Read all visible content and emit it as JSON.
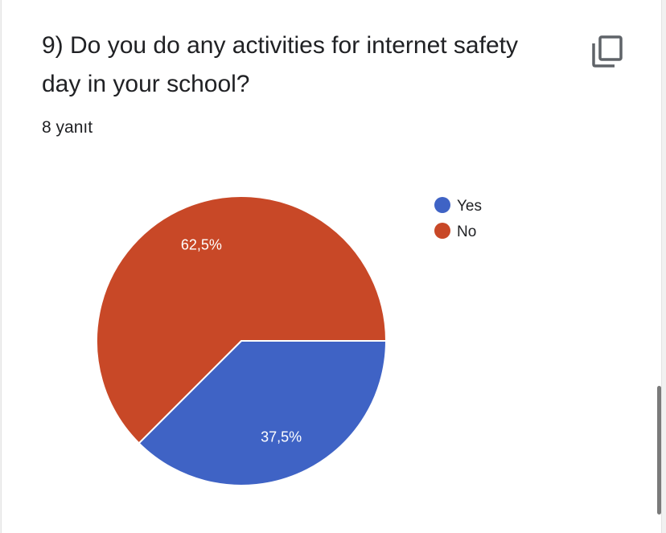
{
  "question": {
    "title": "9) Do you do any activities for internet safety day in your school?",
    "response_count": "8 yanıt"
  },
  "icons": {
    "copy": "copy-icon"
  },
  "colors": {
    "yes": "#3f63c5",
    "no": "#c84827"
  },
  "chart_data": {
    "type": "pie",
    "title": "9) Do you do any activities for internet safety day in your school?",
    "categories": [
      "Yes",
      "No"
    ],
    "values": [
      37.5,
      62.5
    ],
    "labels": [
      "37,5%",
      "62,5%"
    ],
    "legend_position": "right"
  }
}
